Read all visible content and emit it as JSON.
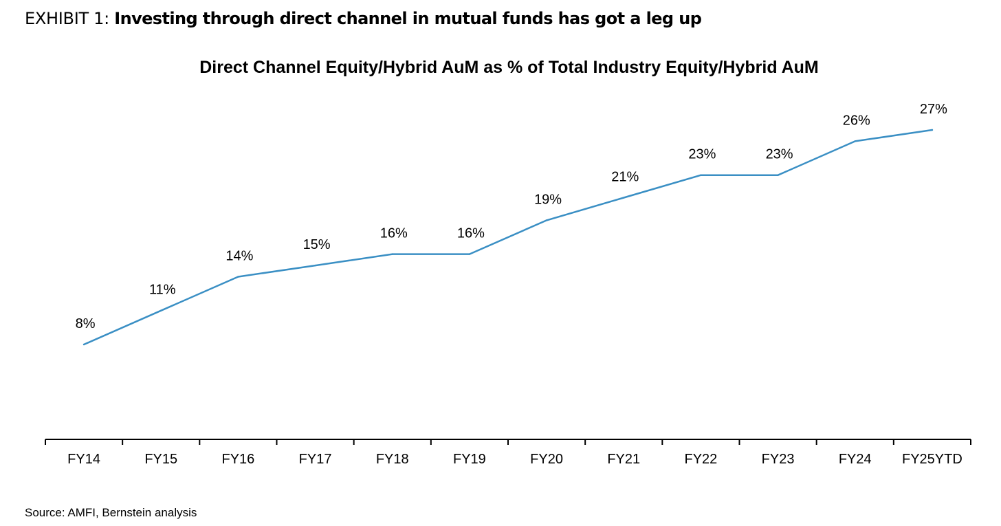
{
  "exhibit": {
    "prefix": "EXHIBIT 1:",
    "headline": "Investing through direct channel in mutual funds has got a leg up"
  },
  "source": "Source: AMFI, Bernstein analysis",
  "colors": {
    "line": "#3a8fc4",
    "axis": "#000000",
    "text": "#000000"
  },
  "chart_data": {
    "type": "line",
    "title": "Direct Channel Equity/Hybrid AuM as % of Total Industry Equity/Hybrid AuM",
    "xlabel": "",
    "ylabel": "",
    "categories": [
      "FY14",
      "FY15",
      "FY16",
      "FY17",
      "FY18",
      "FY19",
      "FY20",
      "FY21",
      "FY22",
      "FY23",
      "FY24",
      "FY25YTD"
    ],
    "values": [
      8,
      11,
      14,
      15,
      16,
      16,
      19,
      21,
      23,
      23,
      26,
      27
    ],
    "value_labels": [
      "8%",
      "11%",
      "14%",
      "15%",
      "16%",
      "16%",
      "19%",
      "21%",
      "23%",
      "23%",
      "26%",
      "27%"
    ],
    "ylim": [
      -1,
      34
    ],
    "grid": false,
    "legend": "none"
  }
}
